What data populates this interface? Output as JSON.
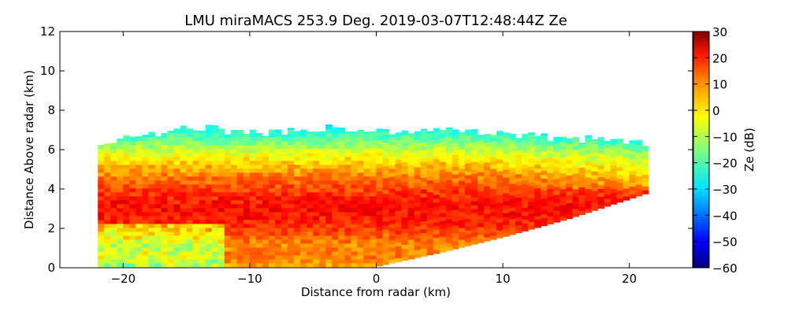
{
  "chart_data": {
    "type": "heatmap",
    "title": "LMU miraMACS 253.9 Deg. 2019-03-07T12:48:44Z  Ze",
    "xlabel": "Distance from radar (km)",
    "ylabel": "Distance Above radar  (km)",
    "xlim": [
      -25,
      25
    ],
    "ylim": [
      0,
      12
    ],
    "xticks": [
      -20,
      -10,
      0,
      10,
      20
    ],
    "xtick_labels": [
      "−20",
      "−10",
      "0",
      "10",
      "20"
    ],
    "yticks": [
      0,
      2,
      4,
      6,
      8,
      10,
      12
    ],
    "ytick_labels": [
      "0",
      "2",
      "4",
      "6",
      "8",
      "10",
      "12"
    ],
    "colorbar": {
      "label": "Ze (dB)",
      "range": [
        -60,
        30
      ],
      "ticks": [
        30,
        20,
        10,
        0,
        -10,
        -20,
        -30,
        -40,
        -50,
        -60
      ],
      "tick_labels": [
        "30",
        "20",
        "10",
        "0",
        "−10",
        "−20",
        "−30",
        "−40",
        "−50",
        "−60"
      ],
      "colormap": [
        "#00007f",
        "#0000ff",
        "#007fff",
        "#00ffff",
        "#7fff7f",
        "#ffff00",
        "#ff7f00",
        "#ff0000",
        "#7f0000"
      ]
    },
    "scan": {
      "left_edge_x_km": -22,
      "right_edge_x_km": 21.5,
      "cloud_top_km": [
        [
          -22,
          6.4
        ],
        [
          -19,
          6.6
        ],
        [
          -15,
          7.1
        ],
        [
          -13,
          7.2
        ],
        [
          -12,
          6.8
        ],
        [
          -8,
          6.9
        ],
        [
          -5,
          7.1
        ],
        [
          -2,
          7.1
        ],
        [
          0,
          7.0
        ],
        [
          3,
          6.9
        ],
        [
          6,
          7.0
        ],
        [
          10,
          6.8
        ],
        [
          14,
          6.6
        ],
        [
          18,
          6.5
        ],
        [
          21.5,
          6.3
        ]
      ],
      "scan_bottom_km": [
        [
          0,
          0.1
        ],
        [
          5,
          0.8
        ],
        [
          10,
          1.6
        ],
        [
          15,
          2.5
        ],
        [
          21.7,
          3.9
        ]
      ],
      "reflectivity_profile_dbz": [
        [
          0.0,
          4
        ],
        [
          0.5,
          8
        ],
        [
          1.0,
          6
        ],
        [
          1.5,
          10
        ],
        [
          2.0,
          15
        ],
        [
          2.5,
          17
        ],
        [
          3.0,
          18
        ],
        [
          3.5,
          16
        ],
        [
          4.0,
          12
        ],
        [
          4.5,
          8
        ],
        [
          5.0,
          3
        ],
        [
          5.5,
          -3
        ],
        [
          6.0,
          -10
        ],
        [
          6.5,
          -18
        ],
        [
          7.0,
          -25
        ],
        [
          7.3,
          -30
        ]
      ]
    }
  }
}
